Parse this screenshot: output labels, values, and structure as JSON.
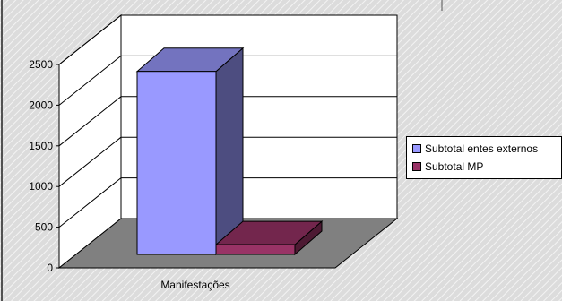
{
  "chart_data": {
    "type": "bar",
    "categories": [
      "Manifestações"
    ],
    "series": [
      {
        "name": "Subtotal entes externos",
        "values": [
          2250
        ],
        "color": "#9999ff"
      },
      {
        "name": "Subtotal MP",
        "values": [
          120
        ],
        "color": "#993366"
      }
    ],
    "y_ticks": [
      "0",
      "500",
      "1000",
      "1500",
      "2000",
      "2500"
    ],
    "ylim": [
      0,
      2500
    ],
    "grid": true,
    "three_d": true,
    "legend_position": "right",
    "title": "",
    "xlabel": "",
    "ylabel": ""
  },
  "colors": {
    "floor": "#808080",
    "wall": "#ffffff",
    "outer_background": "#dcdcdc"
  }
}
